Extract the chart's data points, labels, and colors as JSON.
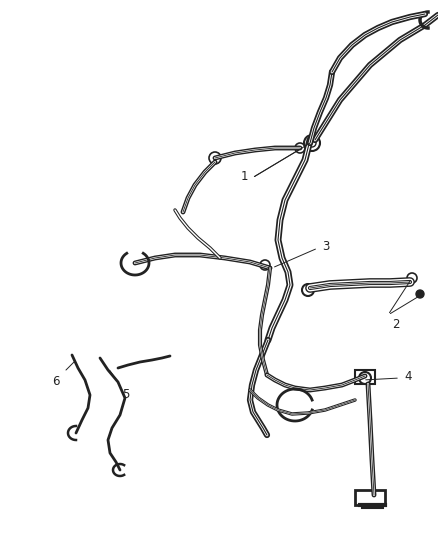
{
  "background_color": "#ffffff",
  "line_color": "#222222",
  "figsize": [
    4.38,
    5.33
  ],
  "dpi": 100,
  "label_fontsize": 8.5
}
